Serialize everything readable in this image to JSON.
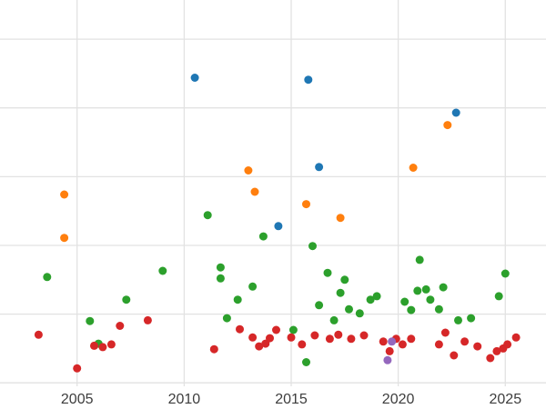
{
  "chart_data": {
    "type": "scatter",
    "title": "",
    "xlabel": "",
    "ylabel": "",
    "x_tick_labels": [
      "2005",
      "2010",
      "2015",
      "2020",
      "2025"
    ],
    "x_ticks": [
      2005,
      2010,
      2015,
      2020,
      2025
    ],
    "y_gridlines": [
      0,
      1,
      2,
      3,
      4,
      5
    ],
    "xlim": [
      2001.4,
      2026.9
    ],
    "ylim": [
      -0.05,
      5.57
    ],
    "grid": true,
    "legend": "none",
    "marker_diameter_px": 9,
    "series": [
      {
        "name": "blue-series",
        "color": "#1f77b4",
        "points": [
          [
            2010.5,
            4.44
          ],
          [
            2015.8,
            4.41
          ],
          [
            2016.3,
            3.14
          ],
          [
            2014.4,
            2.28
          ],
          [
            2022.7,
            3.93
          ]
        ]
      },
      {
        "name": "orange-series",
        "color": "#ff7f0e",
        "points": [
          [
            2004.4,
            2.74
          ],
          [
            2004.4,
            2.11
          ],
          [
            2013.0,
            3.09
          ],
          [
            2013.3,
            2.78
          ],
          [
            2015.7,
            2.6
          ],
          [
            2017.3,
            2.4
          ],
          [
            2020.7,
            3.13
          ],
          [
            2022.3,
            3.75
          ]
        ]
      },
      {
        "name": "green-series",
        "color": "#2ca02c",
        "points": [
          [
            2003.6,
            1.54
          ],
          [
            2005.6,
            0.9
          ],
          [
            2006.0,
            0.57
          ],
          [
            2007.3,
            1.21
          ],
          [
            2009.0,
            1.63
          ],
          [
            2011.1,
            2.44
          ],
          [
            2011.7,
            1.68
          ],
          [
            2011.7,
            1.52
          ],
          [
            2012.0,
            0.94
          ],
          [
            2012.5,
            1.21
          ],
          [
            2013.2,
            1.4
          ],
          [
            2013.7,
            2.13
          ],
          [
            2015.1,
            0.77
          ],
          [
            2015.7,
            0.3
          ],
          [
            2016.0,
            1.99
          ],
          [
            2016.3,
            1.13
          ],
          [
            2016.7,
            1.6
          ],
          [
            2017.0,
            0.91
          ],
          [
            2017.3,
            1.31
          ],
          [
            2017.5,
            1.5
          ],
          [
            2017.7,
            1.07
          ],
          [
            2018.2,
            1.01
          ],
          [
            2018.7,
            1.21
          ],
          [
            2019.0,
            1.26
          ],
          [
            2020.3,
            1.18
          ],
          [
            2020.6,
            1.06
          ],
          [
            2020.9,
            1.34
          ],
          [
            2021.0,
            1.79
          ],
          [
            2021.3,
            1.36
          ],
          [
            2021.5,
            1.21
          ],
          [
            2021.9,
            1.07
          ],
          [
            2022.1,
            1.39
          ],
          [
            2022.8,
            0.91
          ],
          [
            2023.4,
            0.94
          ],
          [
            2024.7,
            1.26
          ],
          [
            2025.0,
            1.59
          ]
        ]
      },
      {
        "name": "red-series",
        "color": "#d62728",
        "points": [
          [
            2003.2,
            0.7
          ],
          [
            2005.0,
            0.21
          ],
          [
            2005.8,
            0.54
          ],
          [
            2006.2,
            0.52
          ],
          [
            2006.6,
            0.56
          ],
          [
            2007.0,
            0.83
          ],
          [
            2008.3,
            0.91
          ],
          [
            2011.4,
            0.49
          ],
          [
            2012.6,
            0.78
          ],
          [
            2013.2,
            0.66
          ],
          [
            2013.5,
            0.53
          ],
          [
            2013.8,
            0.57
          ],
          [
            2014.0,
            0.65
          ],
          [
            2014.3,
            0.77
          ],
          [
            2015.0,
            0.66
          ],
          [
            2015.5,
            0.56
          ],
          [
            2016.1,
            0.69
          ],
          [
            2016.8,
            0.64
          ],
          [
            2017.2,
            0.7
          ],
          [
            2017.8,
            0.64
          ],
          [
            2018.4,
            0.69
          ],
          [
            2019.3,
            0.6
          ],
          [
            2019.6,
            0.46
          ],
          [
            2019.9,
            0.64
          ],
          [
            2020.2,
            0.56
          ],
          [
            2020.6,
            0.64
          ],
          [
            2021.9,
            0.56
          ],
          [
            2022.2,
            0.73
          ],
          [
            2022.6,
            0.4
          ],
          [
            2023.1,
            0.6
          ],
          [
            2023.7,
            0.53
          ],
          [
            2024.3,
            0.36
          ],
          [
            2024.6,
            0.46
          ],
          [
            2024.9,
            0.5
          ],
          [
            2025.1,
            0.56
          ],
          [
            2025.5,
            0.66
          ]
        ]
      },
      {
        "name": "purple-series",
        "color": "#9467bd",
        "points": [
          [
            2019.5,
            0.33
          ],
          [
            2019.7,
            0.6
          ]
        ]
      }
    ]
  },
  "styles": {
    "background": "#ffffff",
    "grid_color": "#e2e2e2",
    "tick_label_color": "#3d3d3d"
  }
}
